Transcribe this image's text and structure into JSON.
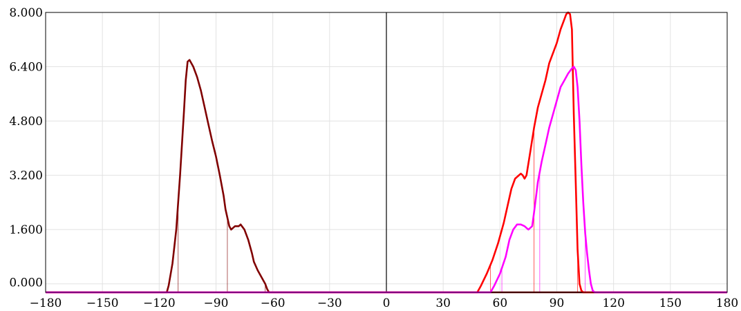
{
  "chart_data": {
    "type": "line",
    "title": "",
    "xlabel": "",
    "ylabel": "",
    "xlim": [
      -180,
      180
    ],
    "ylim": [
      -0.25,
      8.0
    ],
    "grid": true,
    "legend": "none",
    "x_ticks": [
      {
        "v": -180,
        "label": "−180"
      },
      {
        "v": -150,
        "label": "−150"
      },
      {
        "v": -120,
        "label": "−120"
      },
      {
        "v": -90,
        "label": "−90"
      },
      {
        "v": -60,
        "label": "−60"
      },
      {
        "v": -30,
        "label": "−30"
      },
      {
        "v": 0,
        "label": "0"
      },
      {
        "v": 30,
        "label": "30"
      },
      {
        "v": 60,
        "label": "60"
      },
      {
        "v": 90,
        "label": "90"
      },
      {
        "v": 120,
        "label": "120"
      },
      {
        "v": 150,
        "label": "150"
      },
      {
        "v": 180,
        "label": "180"
      }
    ],
    "y_ticks": [
      {
        "v": 0,
        "label": "0.000"
      },
      {
        "v": 1.6,
        "label": "1.600"
      },
      {
        "v": 3.2,
        "label": "3.200"
      },
      {
        "v": 4.8,
        "label": "4.800"
      },
      {
        "v": 6.4,
        "label": "6.400"
      },
      {
        "v": 8.0,
        "label": "8.000"
      }
    ],
    "series": [
      {
        "color": "#800000",
        "points": [
          [
            -180,
            -0.25
          ],
          [
            -116,
            -0.25
          ],
          [
            -115,
            -0.05
          ],
          [
            -113,
            0.6
          ],
          [
            -111,
            1.6
          ],
          [
            -109,
            3.2
          ],
          [
            -107,
            5.0
          ],
          [
            -106,
            6.0
          ],
          [
            -105,
            6.55
          ],
          [
            -104,
            6.6
          ],
          [
            -102,
            6.4
          ],
          [
            -100,
            6.1
          ],
          [
            -98,
            5.7
          ],
          [
            -96,
            5.2
          ],
          [
            -94,
            4.7
          ],
          [
            -92,
            4.2
          ],
          [
            -90,
            3.75
          ],
          [
            -88,
            3.2
          ],
          [
            -86,
            2.6
          ],
          [
            -85,
            2.2
          ],
          [
            -83,
            1.7
          ],
          [
            -82,
            1.6
          ],
          [
            -80,
            1.7
          ],
          [
            -78,
            1.7
          ],
          [
            -77,
            1.75
          ],
          [
            -75,
            1.6
          ],
          [
            -73,
            1.3
          ],
          [
            -71,
            0.9
          ],
          [
            -70,
            0.65
          ],
          [
            -68,
            0.4
          ],
          [
            -66,
            0.2
          ],
          [
            -64,
            0.0
          ],
          [
            -63,
            -0.15
          ],
          [
            -62,
            -0.25
          ],
          [
            -30,
            -0.25
          ],
          [
            0,
            -0.25
          ],
          [
            60,
            -0.25
          ],
          [
            110,
            -0.25
          ],
          [
            180,
            -0.25
          ]
        ],
        "drops": [
          -110,
          -84,
          -64
        ]
      },
      {
        "color": "#ff0000",
        "points": [
          [
            -180,
            -0.25
          ],
          [
            48,
            -0.25
          ],
          [
            50,
            -0.05
          ],
          [
            53,
            0.3
          ],
          [
            56,
            0.7
          ],
          [
            59,
            1.2
          ],
          [
            62,
            1.8
          ],
          [
            64,
            2.3
          ],
          [
            66,
            2.8
          ],
          [
            68,
            3.1
          ],
          [
            70,
            3.2
          ],
          [
            71,
            3.25
          ],
          [
            72,
            3.2
          ],
          [
            73,
            3.1
          ],
          [
            74,
            3.2
          ],
          [
            76,
            3.9
          ],
          [
            78,
            4.6
          ],
          [
            80,
            5.2
          ],
          [
            82,
            5.6
          ],
          [
            84,
            6.0
          ],
          [
            86,
            6.5
          ],
          [
            88,
            6.8
          ],
          [
            90,
            7.1
          ],
          [
            92,
            7.5
          ],
          [
            94,
            7.8
          ],
          [
            95,
            7.95
          ],
          [
            96,
            8.0
          ],
          [
            97,
            7.95
          ],
          [
            98,
            7.5
          ],
          [
            99,
            5.0
          ],
          [
            100,
            3.0
          ],
          [
            101,
            1.0
          ],
          [
            102,
            0.0
          ],
          [
            103,
            -0.2
          ],
          [
            104,
            -0.25
          ],
          [
            180,
            -0.25
          ]
        ],
        "drops": [
          55,
          78,
          101
        ]
      },
      {
        "color": "#ff00ff",
        "points": [
          [
            -180,
            -0.25
          ],
          [
            45,
            -0.25
          ],
          [
            55,
            -0.25
          ],
          [
            57,
            -0.05
          ],
          [
            60,
            0.3
          ],
          [
            63,
            0.8
          ],
          [
            65,
            1.3
          ],
          [
            67,
            1.6
          ],
          [
            69,
            1.75
          ],
          [
            71,
            1.75
          ],
          [
            73,
            1.7
          ],
          [
            75,
            1.6
          ],
          [
            77,
            1.7
          ],
          [
            78,
            2.1
          ],
          [
            80,
            3.0
          ],
          [
            82,
            3.6
          ],
          [
            84,
            4.1
          ],
          [
            86,
            4.6
          ],
          [
            88,
            5.0
          ],
          [
            90,
            5.4
          ],
          [
            92,
            5.8
          ],
          [
            94,
            6.0
          ],
          [
            96,
            6.2
          ],
          [
            98,
            6.35
          ],
          [
            99,
            6.4
          ],
          [
            100,
            6.3
          ],
          [
            101,
            5.8
          ],
          [
            102,
            4.8
          ],
          [
            103,
            3.5
          ],
          [
            104,
            2.4
          ],
          [
            105,
            1.5
          ],
          [
            106,
            0.9
          ],
          [
            107,
            0.4
          ],
          [
            108,
            0.0
          ],
          [
            109,
            -0.2
          ],
          [
            110,
            -0.25
          ],
          [
            180,
            -0.25
          ]
        ],
        "drops": [
          61,
          81,
          105
        ]
      }
    ]
  }
}
